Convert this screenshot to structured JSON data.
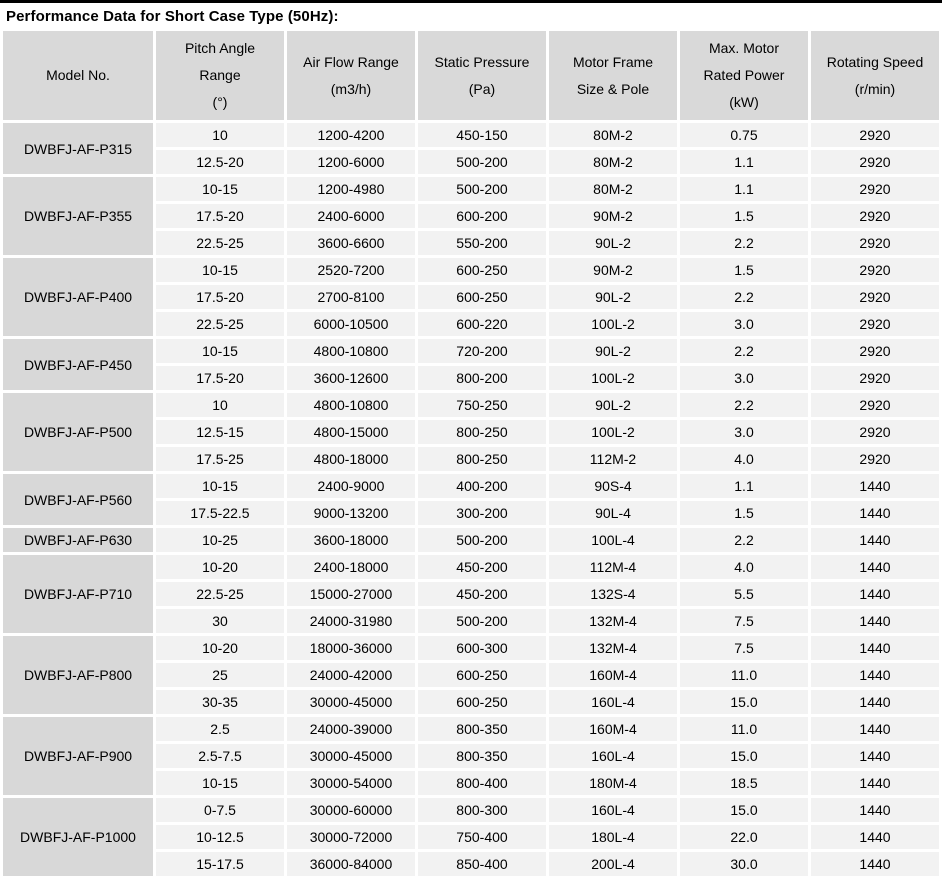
{
  "title": "Performance Data for Short Case Type (50Hz):",
  "colors": {
    "header_bg": "#d9d9d9",
    "model_bg": "#d8d8d8",
    "cell_bg": "#f2f2f2",
    "text": "#000000",
    "top_bar": "#000000"
  },
  "table": {
    "columns": [
      "Model No.",
      "Pitch Angle\nRange\n(°)",
      "Air Flow Range\n(m3/h)",
      "Static Pressure\n(Pa)",
      "Motor Frame\nSize & Pole",
      "Max. Motor\nRated Power\n(kW)",
      "Rotating Speed\n(r/min)"
    ],
    "groups": [
      {
        "model": "DWBFJ-AF-P315",
        "rows": [
          [
            "10",
            "1200-4200",
            "450-150",
            "80M-2",
            "0.75",
            "2920"
          ],
          [
            "12.5-20",
            "1200-6000",
            "500-200",
            "80M-2",
            "1.1",
            "2920"
          ]
        ]
      },
      {
        "model": "DWBFJ-AF-P355",
        "rows": [
          [
            "10-15",
            "1200-4980",
            "500-200",
            "80M-2",
            "1.1",
            "2920"
          ],
          [
            "17.5-20",
            "2400-6000",
            "600-200",
            "90M-2",
            "1.5",
            "2920"
          ],
          [
            "22.5-25",
            "3600-6600",
            "550-200",
            "90L-2",
            "2.2",
            "2920"
          ]
        ]
      },
      {
        "model": "DWBFJ-AF-P400",
        "rows": [
          [
            "10-15",
            "2520-7200",
            "600-250",
            "90M-2",
            "1.5",
            "2920"
          ],
          [
            "17.5-20",
            "2700-8100",
            "600-250",
            "90L-2",
            "2.2",
            "2920"
          ],
          [
            "22.5-25",
            "6000-10500",
            "600-220",
            "100L-2",
            "3.0",
            "2920"
          ]
        ]
      },
      {
        "model": "DWBFJ-AF-P450",
        "rows": [
          [
            "10-15",
            "4800-10800",
            "720-200",
            "90L-2",
            "2.2",
            "2920"
          ],
          [
            "17.5-20",
            "3600-12600",
            "800-200",
            "100L-2",
            "3.0",
            "2920"
          ]
        ]
      },
      {
        "model": "DWBFJ-AF-P500",
        "rows": [
          [
            "10",
            "4800-10800",
            "750-250",
            "90L-2",
            "2.2",
            "2920"
          ],
          [
            "12.5-15",
            "4800-15000",
            "800-250",
            "100L-2",
            "3.0",
            "2920"
          ],
          [
            "17.5-25",
            "4800-18000",
            "800-250",
            "112M-2",
            "4.0",
            "2920"
          ]
        ]
      },
      {
        "model": "DWBFJ-AF-P560",
        "rows": [
          [
            "10-15",
            "2400-9000",
            "400-200",
            "90S-4",
            "1.1",
            "1440"
          ],
          [
            "17.5-22.5",
            "9000-13200",
            "300-200",
            "90L-4",
            "1.5",
            "1440"
          ]
        ]
      },
      {
        "model": "DWBFJ-AF-P630",
        "rows": [
          [
            "10-25",
            "3600-18000",
            "500-200",
            "100L-4",
            "2.2",
            "1440"
          ]
        ]
      },
      {
        "model": "DWBFJ-AF-P710",
        "rows": [
          [
            "10-20",
            "2400-18000",
            "450-200",
            "112M-4",
            "4.0",
            "1440"
          ],
          [
            "22.5-25",
            "15000-27000",
            "450-200",
            "132S-4",
            "5.5",
            "1440"
          ],
          [
            "30",
            "24000-31980",
            "500-200",
            "132M-4",
            "7.5",
            "1440"
          ]
        ]
      },
      {
        "model": "DWBFJ-AF-P800",
        "rows": [
          [
            "10-20",
            "18000-36000",
            "600-300",
            "132M-4",
            "7.5",
            "1440"
          ],
          [
            "25",
            "24000-42000",
            "600-250",
            "160M-4",
            "11.0",
            "1440"
          ],
          [
            "30-35",
            "30000-45000",
            "600-250",
            "160L-4",
            "15.0",
            "1440"
          ]
        ]
      },
      {
        "model": "DWBFJ-AF-P900",
        "rows": [
          [
            "2.5",
            "24000-39000",
            "800-350",
            "160M-4",
            "11.0",
            "1440"
          ],
          [
            "2.5-7.5",
            "30000-45000",
            "800-350",
            "160L-4",
            "15.0",
            "1440"
          ],
          [
            "10-15",
            "30000-54000",
            "800-400",
            "180M-4",
            "18.5",
            "1440"
          ]
        ]
      },
      {
        "model": "DWBFJ-AF-P1000",
        "rows": [
          [
            "0-7.5",
            "30000-60000",
            "800-300",
            "160L-4",
            "15.0",
            "1440"
          ],
          [
            "10-12.5",
            "30000-72000",
            "750-400",
            "180L-4",
            "22.0",
            "1440"
          ],
          [
            "15-17.5",
            "36000-84000",
            "850-400",
            "200L-4",
            "30.0",
            "1440"
          ]
        ]
      }
    ]
  }
}
